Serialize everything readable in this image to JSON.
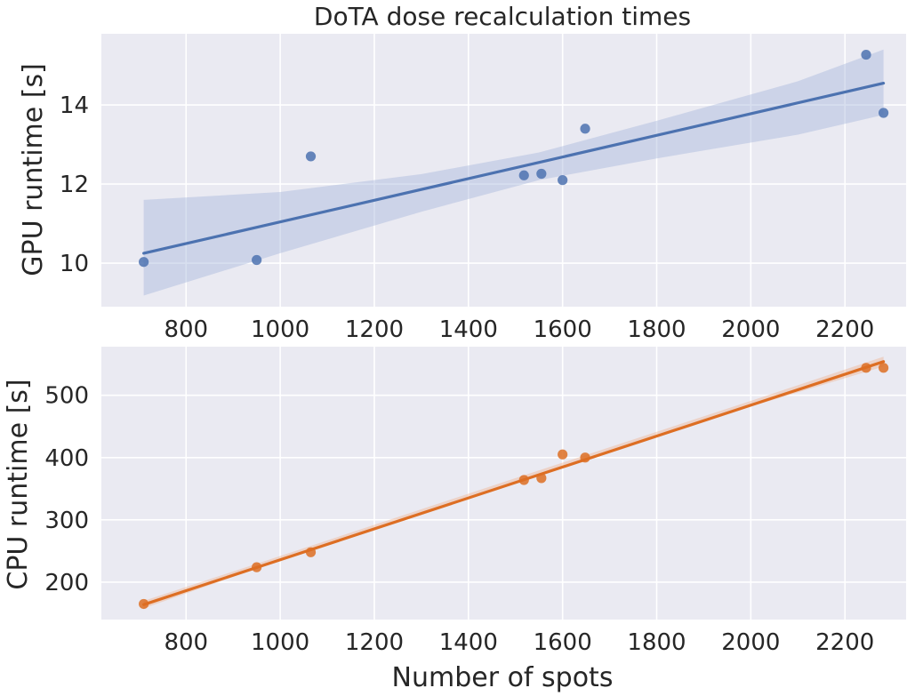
{
  "chart_data": [
    {
      "type": "scatter",
      "title": "DoTA dose recalculation times",
      "xlabel": "",
      "ylabel": "GPU runtime [s]",
      "xlim": [
        620,
        2330
      ],
      "ylim": [
        8.9,
        15.8
      ],
      "xticks": [
        800,
        1000,
        1200,
        1400,
        1600,
        1800,
        2000,
        2200
      ],
      "yticks": [
        10,
        12,
        14
      ],
      "grid": true,
      "color": "#4c72b0",
      "band_color": "#a9b8dc",
      "points": [
        {
          "x": 710,
          "y": 10.03
        },
        {
          "x": 950,
          "y": 10.08
        },
        {
          "x": 1065,
          "y": 12.7
        },
        {
          "x": 1518,
          "y": 12.22
        },
        {
          "x": 1555,
          "y": 12.26
        },
        {
          "x": 1600,
          "y": 12.1
        },
        {
          "x": 1648,
          "y": 13.4
        },
        {
          "x": 2245,
          "y": 15.27
        },
        {
          "x": 2282,
          "y": 13.8
        }
      ],
      "fit": {
        "x": [
          710,
          2282
        ],
        "y": [
          10.25,
          14.55
        ]
      },
      "band": {
        "x": [
          710,
          1000,
          1300,
          1550,
          1800,
          2100,
          2282
        ],
        "upper": [
          11.6,
          11.8,
          12.25,
          12.8,
          13.6,
          14.6,
          15.4
        ],
        "lower": [
          9.18,
          10.25,
          11.3,
          12.1,
          12.65,
          13.25,
          13.75
        ]
      }
    },
    {
      "type": "scatter",
      "title": "",
      "xlabel": "Number of spots",
      "ylabel": "CPU runtime [s]",
      "xlim": [
        620,
        2330
      ],
      "ylim": [
        140,
        578
      ],
      "xticks": [
        800,
        1000,
        1200,
        1400,
        1600,
        1800,
        2000,
        2200
      ],
      "yticks": [
        200,
        300,
        400,
        500
      ],
      "grid": true,
      "color": "#dd6e23",
      "band_color": "#f0b594",
      "points": [
        {
          "x": 710,
          "y": 165
        },
        {
          "x": 950,
          "y": 224
        },
        {
          "x": 1065,
          "y": 248
        },
        {
          "x": 1518,
          "y": 364
        },
        {
          "x": 1555,
          "y": 367
        },
        {
          "x": 1600,
          "y": 405
        },
        {
          "x": 1648,
          "y": 400
        },
        {
          "x": 2245,
          "y": 544
        },
        {
          "x": 2282,
          "y": 544
        }
      ],
      "fit": {
        "x": [
          710,
          2282
        ],
        "y": [
          164,
          554
        ]
      },
      "band": {
        "x": [
          710,
          1000,
          1500,
          2000,
          2282
        ],
        "upper": [
          170,
          242,
          367,
          491,
          562
        ],
        "lower": [
          158,
          235,
          360,
          482,
          546
        ]
      }
    }
  ]
}
